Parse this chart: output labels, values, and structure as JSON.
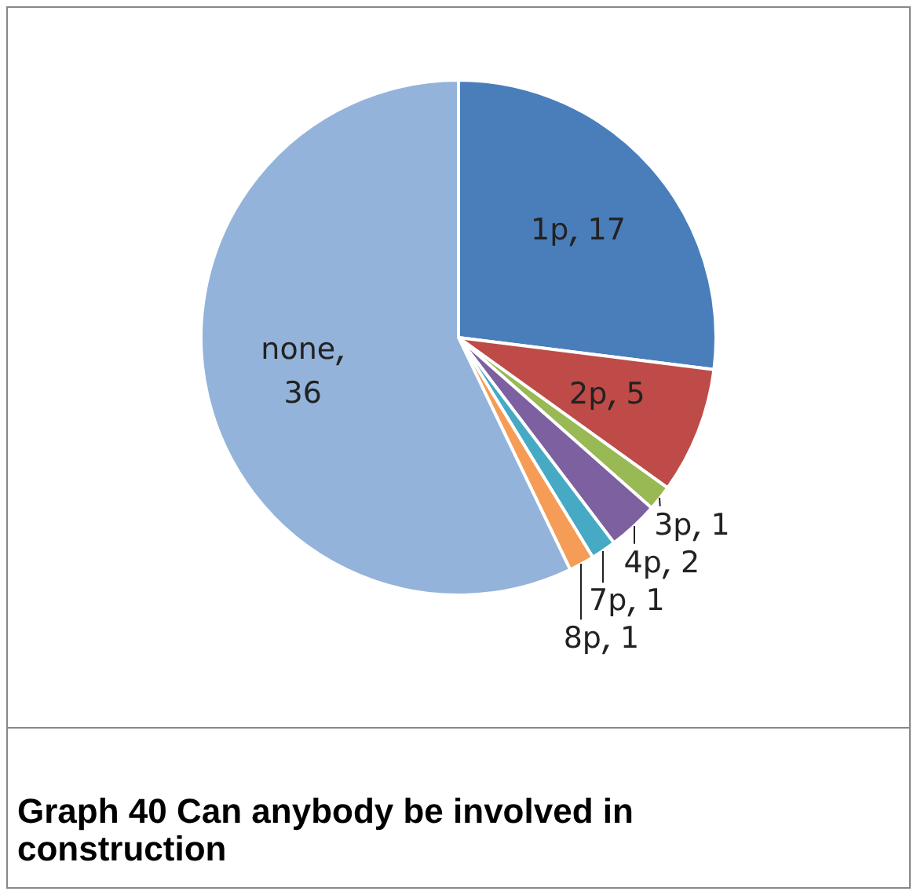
{
  "chart_data": {
    "type": "pie",
    "title": "Graph 40 Can anybody be involved in construction",
    "categories": [
      "1p",
      "2p",
      "3p",
      "4p",
      "7p",
      "8p",
      "none"
    ],
    "data_labels": true,
    "values": [
      17,
      5,
      1,
      2,
      1,
      1,
      36
    ],
    "colors": [
      "#4a7ebb",
      "#be4b48",
      "#98b954",
      "#7d60a0",
      "#46aac5",
      "#f59d56",
      "#93b3da"
    ],
    "legend": false
  }
}
